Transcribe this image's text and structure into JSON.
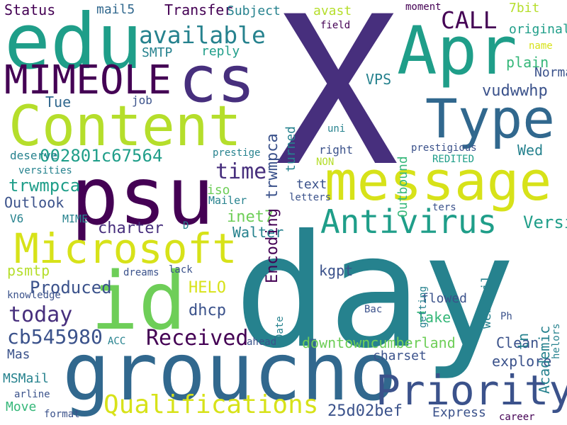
{
  "palette": {
    "dark_purple": "#440154",
    "indigo": "#472f7d",
    "blue_purple": "#3b528b",
    "steel_blue": "#31688e",
    "teal": "#26828e",
    "green_teal": "#1f9e89",
    "green": "#35b779",
    "light_green": "#6ece58",
    "lime": "#b5de2b",
    "yellow": "#d7e219"
  },
  "words": [
    {
      "text": "X",
      "color": "#472f7d"
    },
    {
      "text": "day",
      "color": "#26828e"
    },
    {
      "text": "groucho",
      "color": "#31688e"
    },
    {
      "text": "psu",
      "color": "#440154"
    },
    {
      "text": "edu",
      "color": "#1f9e89"
    },
    {
      "text": "Apr",
      "color": "#1f9e89"
    },
    {
      "text": "cs",
      "color": "#472f7d"
    },
    {
      "text": "Content",
      "color": "#b5de2b"
    },
    {
      "text": "message",
      "color": "#d7e219"
    },
    {
      "text": "Type",
      "color": "#31688e"
    },
    {
      "text": "id",
      "color": "#6ece58"
    },
    {
      "text": "Priority",
      "color": "#3b528b"
    },
    {
      "text": "Microsoft",
      "color": "#d7e219"
    },
    {
      "text": "MIMEOLE",
      "color": "#440154"
    },
    {
      "text": "Antivirus",
      "color": "#1f9e89"
    },
    {
      "text": "Qualifications",
      "color": "#d7e219"
    },
    {
      "text": "available",
      "color": "#26828e"
    },
    {
      "text": "CALL",
      "color": "#440154"
    },
    {
      "text": "Received",
      "color": "#440154"
    },
    {
      "text": "today",
      "color": "#472f7d"
    },
    {
      "text": "time",
      "color": "#472f7d"
    },
    {
      "text": "cb545980",
      "color": "#3b528b"
    },
    {
      "text": "002801c67564",
      "color": "#1f9e89"
    },
    {
      "text": "charter",
      "color": "#472f7d"
    },
    {
      "text": "downtowncumberland",
      "color": "#6ece58"
    },
    {
      "text": "25d02bef",
      "color": "#3b528b"
    },
    {
      "text": "vudwwhp",
      "color": "#3b528b"
    },
    {
      "text": "trwmpca",
      "color": "#3b528b"
    },
    {
      "text": "inet7",
      "color": "#1f9e89"
    },
    {
      "text": "Walter",
      "color": "#6ece58"
    },
    {
      "text": "Outlook",
      "color": "#26828e"
    },
    {
      "text": "Produced",
      "color": "#3b528b"
    },
    {
      "text": "psmtp",
      "color": "#3b528b"
    },
    {
      "text": "HELO",
      "color": "#b5de2b"
    },
    {
      "text": "dhcp",
      "color": "#d7e219"
    },
    {
      "text": "kgpt",
      "color": "#3b528b"
    },
    {
      "text": "flowed",
      "color": "#3b528b"
    },
    {
      "text": "Take",
      "color": "#3b528b"
    },
    {
      "text": "Clean",
      "color": "#35b779"
    },
    {
      "text": "explore",
      "color": "#3b528b"
    },
    {
      "text": "charset",
      "color": "#3b528b"
    },
    {
      "text": "Express",
      "color": "#3b528b"
    },
    {
      "text": "Version",
      "color": "#3b528b"
    },
    {
      "text": "Wed",
      "color": "#1f9e89"
    },
    {
      "text": "plain",
      "color": "#26828e"
    },
    {
      "text": "Normal",
      "color": "#35b779"
    },
    {
      "text": "VPS",
      "color": "#3b528b"
    },
    {
      "text": "Tue",
      "color": "#26828e"
    },
    {
      "text": "Transfer",
      "color": "#31688e"
    },
    {
      "text": "mail5",
      "color": "#440154"
    },
    {
      "text": "Subject",
      "color": "#31688e"
    },
    {
      "text": "Status",
      "color": "#26828e"
    },
    {
      "text": "SMTP",
      "color": "#440154"
    },
    {
      "text": "reply",
      "color": "#26828e"
    },
    {
      "text": "avast",
      "color": "#1f9e89"
    },
    {
      "text": "7bit",
      "color": "#b5de2b"
    },
    {
      "text": "original",
      "color": "#b5de2b"
    },
    {
      "text": "moment",
      "color": "#1f9e89"
    },
    {
      "text": "field",
      "color": "#440154"
    },
    {
      "text": "name",
      "color": "#440154"
    },
    {
      "text": "job",
      "color": "#d7e219"
    },
    {
      "text": "right",
      "color": "#3b528b"
    },
    {
      "text": "text",
      "color": "#3b528b"
    },
    {
      "text": "iso",
      "color": "#3b528b"
    },
    {
      "text": "Mailer",
      "color": "#6ece58"
    },
    {
      "text": "prestige",
      "color": "#26828e"
    },
    {
      "text": "versities",
      "color": "#26828e"
    },
    {
      "text": "deserve",
      "color": "#26828e"
    },
    {
      "text": "V6",
      "color": "#26828e"
    },
    {
      "text": "MIME",
      "color": "#26828e"
    },
    {
      "text": "D",
      "color": "#26828e"
    },
    {
      "text": "uni",
      "color": "#26828e"
    },
    {
      "text": "NON",
      "color": "#26828e"
    },
    {
      "text": "letters",
      "color": "#b5de2b"
    },
    {
      "text": "ters",
      "color": "#3b528b"
    },
    {
      "text": "REDITED",
      "color": "#3b528b"
    },
    {
      "text": "prestigious",
      "color": "#1f9e89"
    },
    {
      "text": "dreams",
      "color": "#3b528b"
    },
    {
      "text": "lack",
      "color": "#3b528b"
    },
    {
      "text": "knowledge",
      "color": "#3b528b"
    },
    {
      "text": "Bac",
      "color": "#3b528b"
    },
    {
      "text": "Ph",
      "color": "#3b528b"
    },
    {
      "text": "ACC",
      "color": "#3b528b"
    },
    {
      "text": "ahead",
      "color": "#26828e"
    },
    {
      "text": "Mas",
      "color": "#3b528b"
    },
    {
      "text": "MSMail",
      "color": "#3b528b"
    },
    {
      "text": "arline",
      "color": "#26828e"
    },
    {
      "text": "Move",
      "color": "#3b528b"
    },
    {
      "text": "format",
      "color": "#35b779"
    },
    {
      "text": "career",
      "color": "#3b528b"
    },
    {
      "text": "turned",
      "color": "#440154"
    },
    {
      "text": "Outbound",
      "color": "#26828e"
    },
    {
      "text": "Encoding",
      "color": "#35b779"
    },
    {
      "text": "tn",
      "color": "#440154"
    },
    {
      "text": "Academic",
      "color": "#26828e"
    },
    {
      "text": "webmail",
      "color": "#26828e"
    },
    {
      "text": "Date",
      "color": "#26828e"
    },
    {
      "text": "getting",
      "color": "#26828e"
    },
    {
      "text": "helors",
      "color": "#26828e"
    },
    {
      "text": "experience",
      "color": "#26828e"
    }
  ]
}
